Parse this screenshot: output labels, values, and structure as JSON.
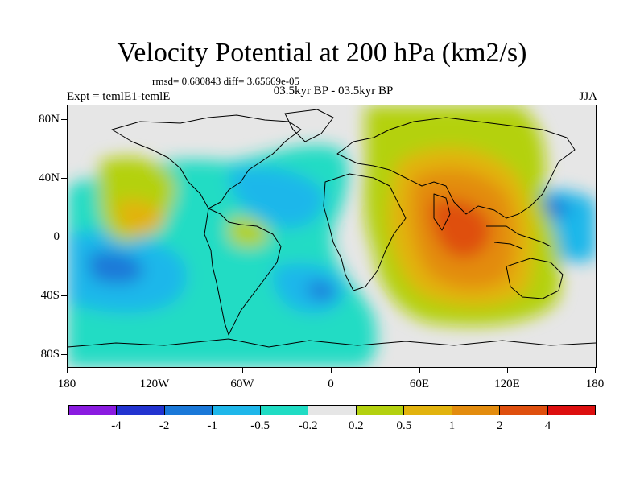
{
  "title": "Velocity Potential at 200 hPa (km2/s)",
  "stats": "rmsd= 0.680843 diff= 3.65669e-05",
  "left_label": "Expt = temlE1-temlE",
  "center_label": "03.5kyr BP - 03.5kyr BP",
  "right_label": "JJA",
  "lat_labels": [
    "80N",
    "40N",
    "0",
    "40S",
    "80S"
  ],
  "lon_labels": [
    "180",
    "120W",
    "60W",
    "0",
    "60E",
    "120E",
    "180"
  ],
  "colorbar": {
    "labels": [
      "-4",
      "-2",
      "-1",
      "-0.5",
      "-0.2",
      "0.2",
      "0.5",
      "1",
      "2",
      "4"
    ],
    "colors": [
      "#8a1be0",
      "#2233d0",
      "#1a78d8",
      "#1fb7ea",
      "#20dcc4",
      "#e6e6e6",
      "#b4d10f",
      "#e2b30e",
      "#e38c0e",
      "#df4f0e",
      "#dd0f0f"
    ]
  }
}
